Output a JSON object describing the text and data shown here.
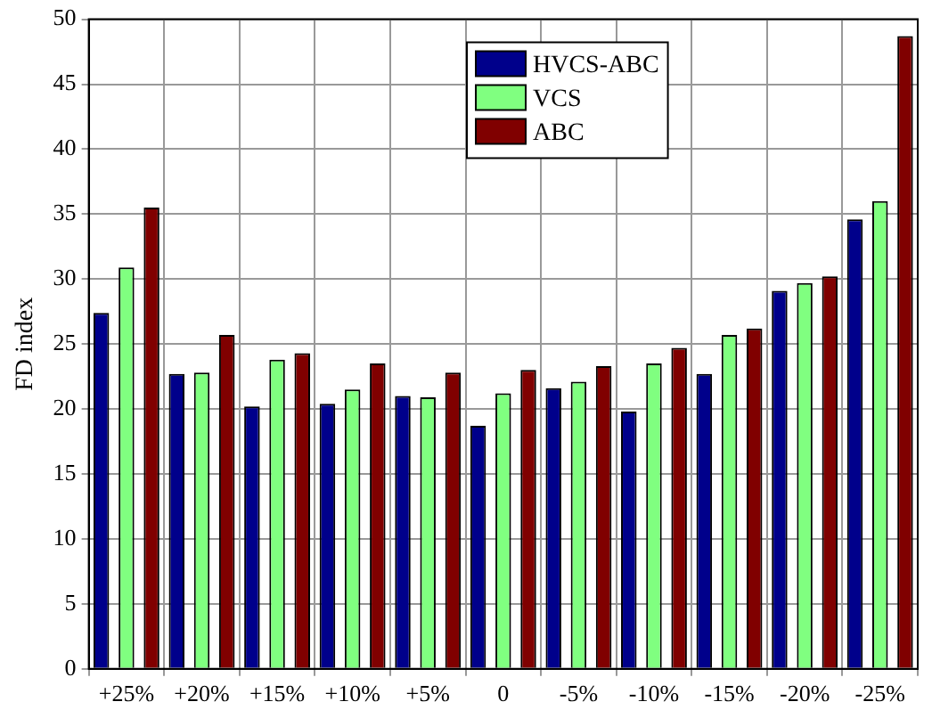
{
  "chart_data": {
    "type": "bar",
    "ylabel": "FD index",
    "categories": [
      "+25%",
      "+20%",
      "+15%",
      "+10%",
      "+5%",
      "0",
      "-5%",
      "-10%",
      "-15%",
      "-20%",
      "-25%"
    ],
    "series": [
      {
        "name": "HVCS-ABC",
        "color": "#00008b",
        "values": [
          27.4,
          22.7,
          20.2,
          20.4,
          21.0,
          18.7,
          21.6,
          19.8,
          22.7,
          29.1,
          34.6
        ]
      },
      {
        "name": "VCS",
        "color": "#80ff80",
        "values": [
          30.9,
          22.8,
          23.8,
          21.5,
          20.9,
          21.2,
          22.1,
          23.5,
          25.7,
          29.7,
          36.0
        ]
      },
      {
        "name": "ABC",
        "color": "#800000",
        "values": [
          35.5,
          25.7,
          24.3,
          23.5,
          22.8,
          23.0,
          23.3,
          24.7,
          26.2,
          30.2,
          48.7
        ]
      }
    ],
    "ylim": [
      0,
      50
    ],
    "yticks": [
      0,
      5,
      10,
      15,
      20,
      25,
      30,
      35,
      40,
      45,
      50
    ],
    "grid": true,
    "legend": "top"
  }
}
